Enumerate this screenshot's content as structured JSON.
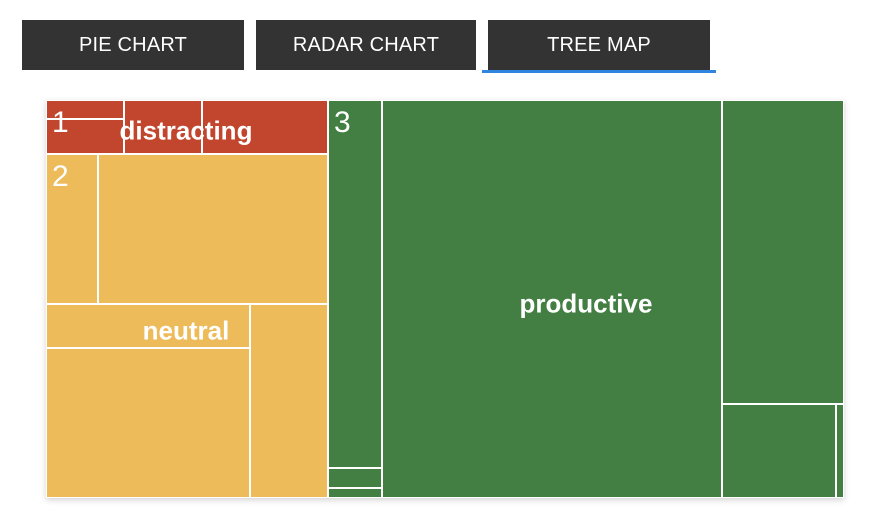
{
  "tabs": [
    {
      "label": "PIE CHART",
      "active": false
    },
    {
      "label": "RADAR CHART",
      "active": false
    },
    {
      "label": "TREE MAP",
      "active": true
    }
  ],
  "chart_data": {
    "type": "treemap",
    "groups": [
      {
        "number": "1",
        "name": "distracting",
        "color": "#c2462e"
      },
      {
        "number": "2",
        "name": "neutral",
        "color": "#edbb59"
      },
      {
        "number": "3",
        "name": "productive",
        "color": "#437f42"
      }
    ]
  }
}
